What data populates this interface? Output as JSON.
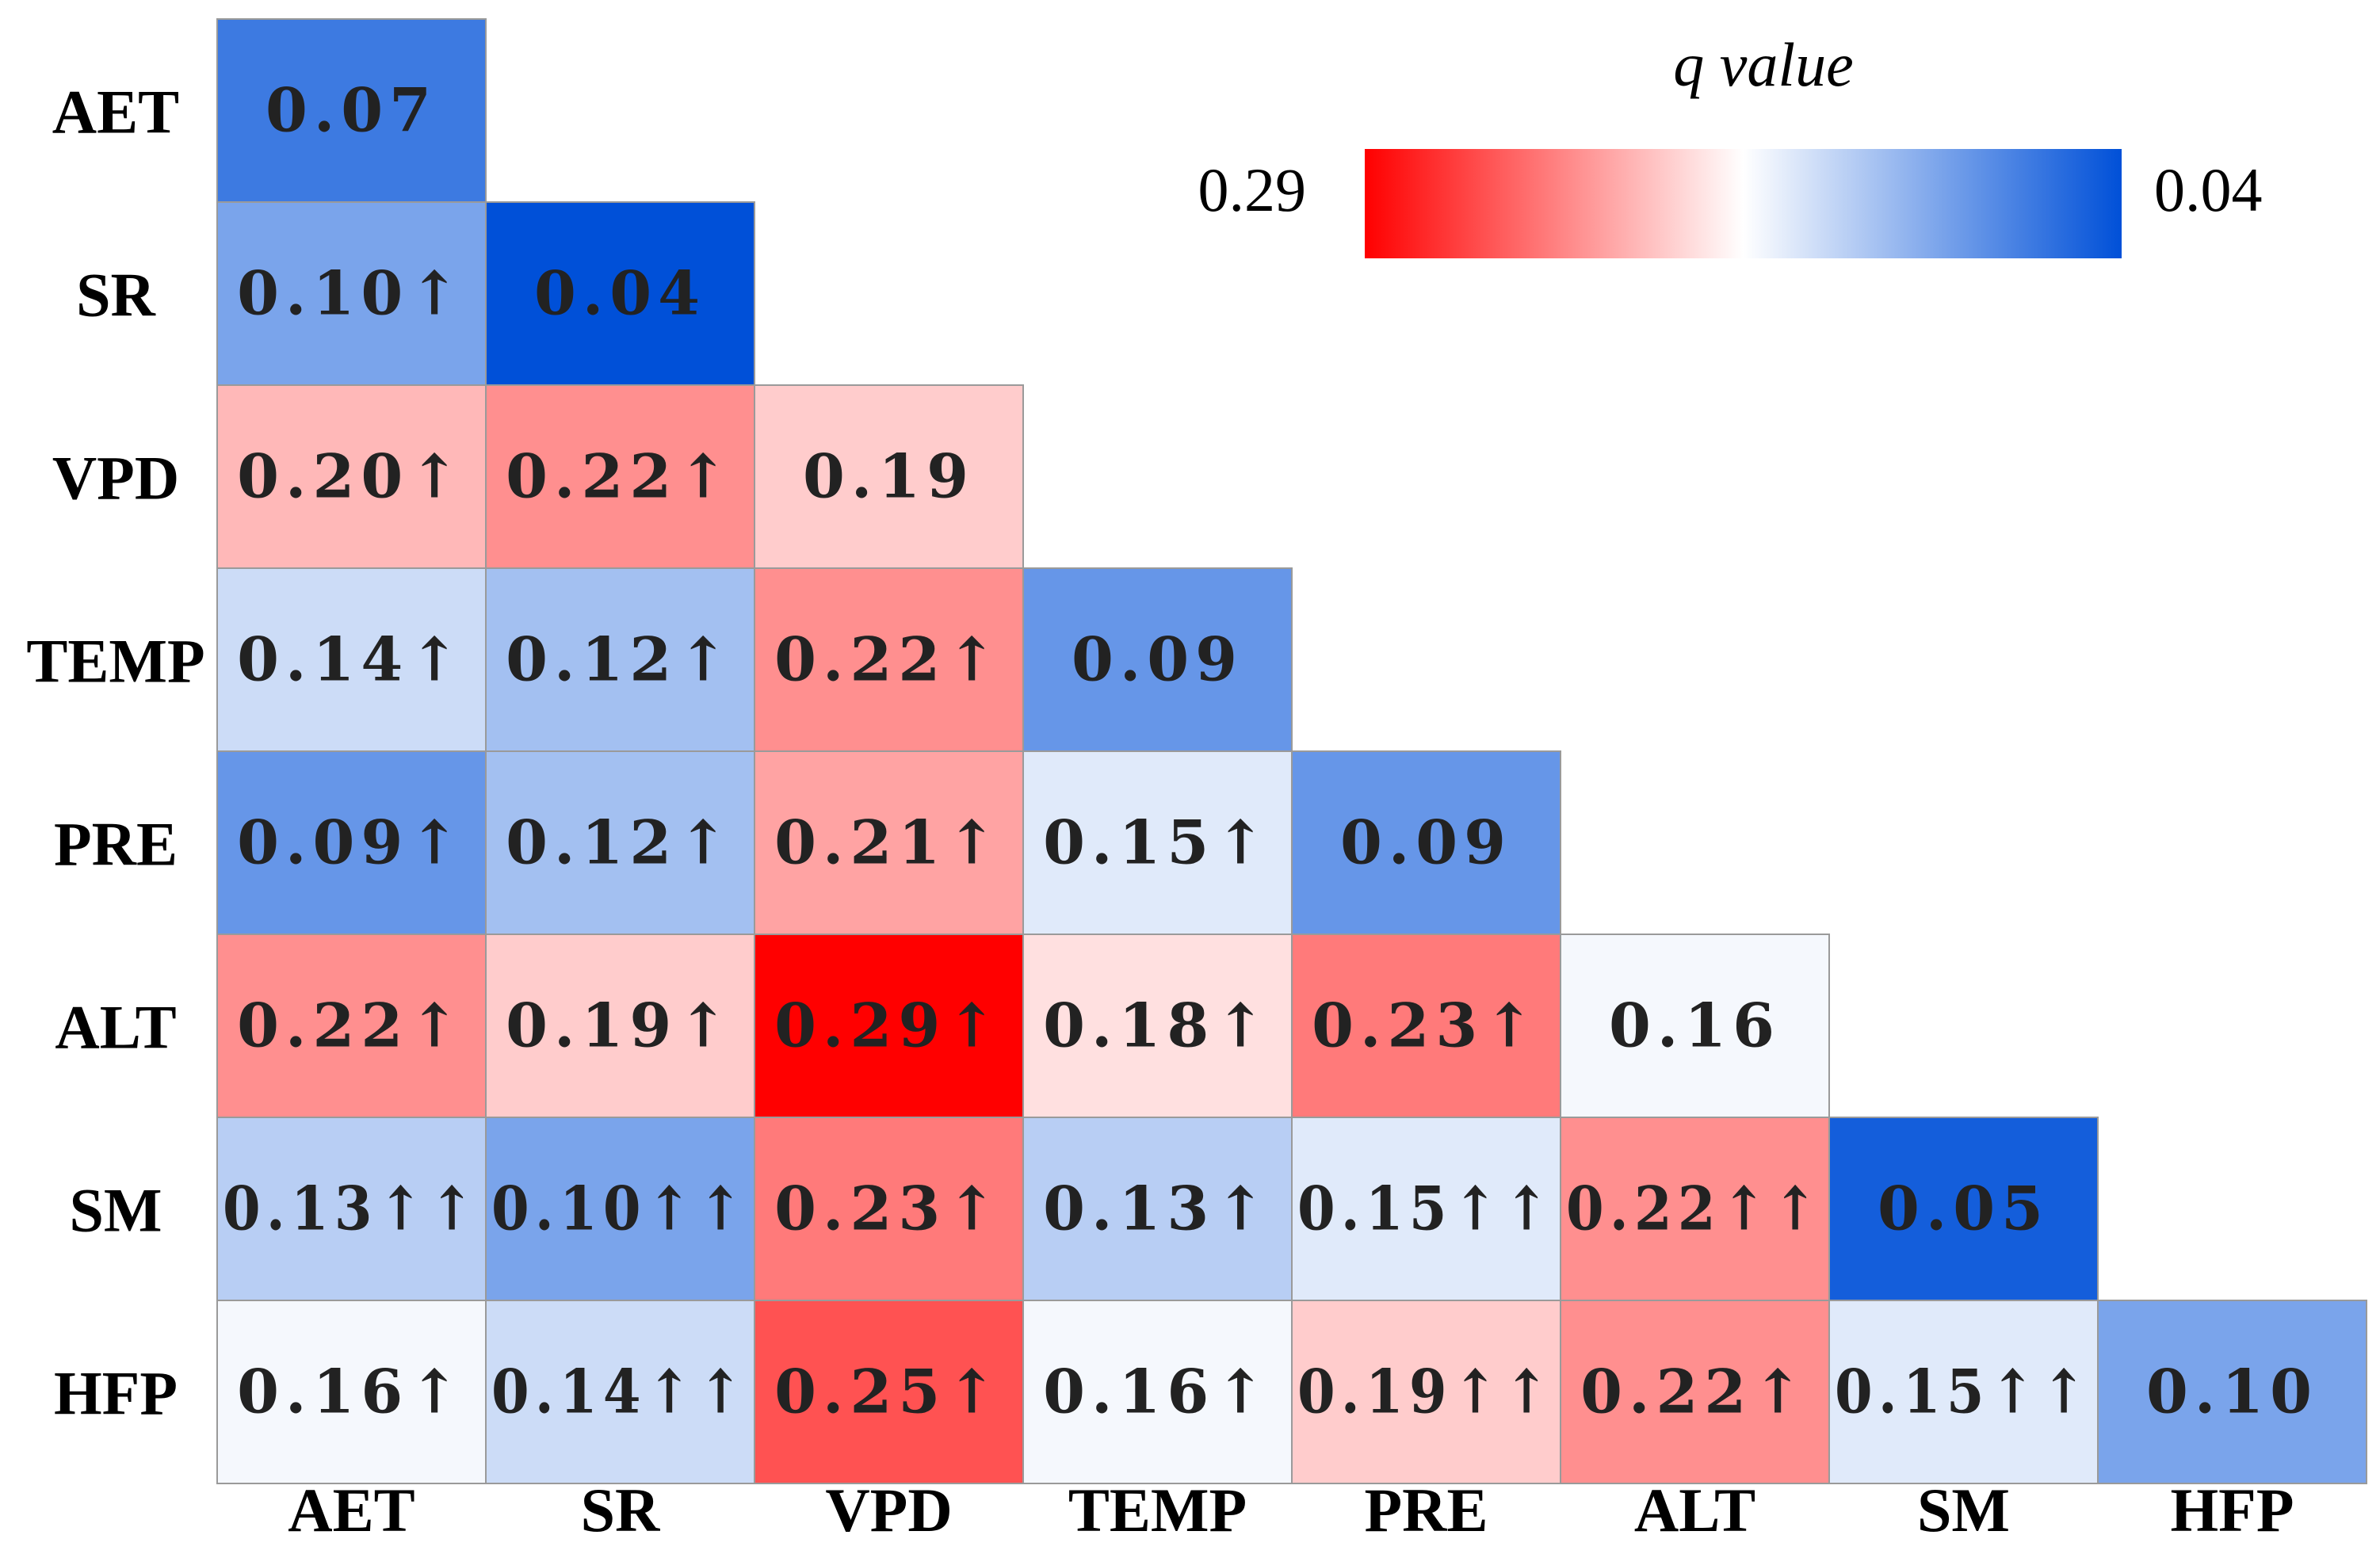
{
  "chart_data": {
    "type": "heatmap",
    "title": "",
    "xlabel": "",
    "ylabel": "",
    "factors": [
      "AET",
      "SR",
      "VPD",
      "TEMP",
      "PRE",
      "ALT",
      "SM",
      "HFP"
    ],
    "legend": {
      "title": "q value",
      "max_label": "0.29",
      "min_label": "0.04",
      "max": 0.29,
      "min": 0.04,
      "high_color": "#ff0000",
      "mid_color": "#ffffff",
      "low_color": "#0050d8",
      "placement": "top-right"
    },
    "cells": [
      {
        "row": "AET",
        "col": "AET",
        "value": 0.07,
        "label": "0.07"
      },
      {
        "row": "SR",
        "col": "AET",
        "value": 0.1,
        "label": "0.10↑"
      },
      {
        "row": "SR",
        "col": "SR",
        "value": 0.04,
        "label": "0.04"
      },
      {
        "row": "VPD",
        "col": "AET",
        "value": 0.2,
        "label": "0.20↑"
      },
      {
        "row": "VPD",
        "col": "SR",
        "value": 0.22,
        "label": "0.22↑"
      },
      {
        "row": "VPD",
        "col": "VPD",
        "value": 0.19,
        "label": "0.19"
      },
      {
        "row": "TEMP",
        "col": "AET",
        "value": 0.14,
        "label": "0.14↑"
      },
      {
        "row": "TEMP",
        "col": "SR",
        "value": 0.12,
        "label": "0.12↑"
      },
      {
        "row": "TEMP",
        "col": "VPD",
        "value": 0.22,
        "label": "0.22↑"
      },
      {
        "row": "TEMP",
        "col": "TEMP",
        "value": 0.09,
        "label": "0.09"
      },
      {
        "row": "PRE",
        "col": "AET",
        "value": 0.09,
        "label": "0.09↑"
      },
      {
        "row": "PRE",
        "col": "SR",
        "value": 0.12,
        "label": "0.12↑"
      },
      {
        "row": "PRE",
        "col": "VPD",
        "value": 0.21,
        "label": "0.21↑"
      },
      {
        "row": "PRE",
        "col": "TEMP",
        "value": 0.15,
        "label": "0.15↑"
      },
      {
        "row": "PRE",
        "col": "PRE",
        "value": 0.09,
        "label": "0.09"
      },
      {
        "row": "ALT",
        "col": "AET",
        "value": 0.22,
        "label": "0.22↑"
      },
      {
        "row": "ALT",
        "col": "SR",
        "value": 0.19,
        "label": "0.19↑"
      },
      {
        "row": "ALT",
        "col": "VPD",
        "value": 0.29,
        "label": "0.29↑"
      },
      {
        "row": "ALT",
        "col": "TEMP",
        "value": 0.18,
        "label": "0.18↑"
      },
      {
        "row": "ALT",
        "col": "PRE",
        "value": 0.23,
        "label": "0.23↑"
      },
      {
        "row": "ALT",
        "col": "ALT",
        "value": 0.16,
        "label": "0.16"
      },
      {
        "row": "SM",
        "col": "AET",
        "value": 0.13,
        "label": "0.13↑↑"
      },
      {
        "row": "SM",
        "col": "SR",
        "value": 0.1,
        "label": "0.10↑↑"
      },
      {
        "row": "SM",
        "col": "VPD",
        "value": 0.23,
        "label": "0.23↑"
      },
      {
        "row": "SM",
        "col": "TEMP",
        "value": 0.13,
        "label": "0.13↑"
      },
      {
        "row": "SM",
        "col": "PRE",
        "value": 0.15,
        "label": "0.15↑↑"
      },
      {
        "row": "SM",
        "col": "ALT",
        "value": 0.22,
        "label": "0.22↑↑"
      },
      {
        "row": "SM",
        "col": "SM",
        "value": 0.05,
        "label": "0.05"
      },
      {
        "row": "HFP",
        "col": "AET",
        "value": 0.16,
        "label": "0.16↑"
      },
      {
        "row": "HFP",
        "col": "SR",
        "value": 0.14,
        "label": "0.14↑↑"
      },
      {
        "row": "HFP",
        "col": "VPD",
        "value": 0.25,
        "label": "0.25↑"
      },
      {
        "row": "HFP",
        "col": "TEMP",
        "value": 0.16,
        "label": "0.16↑"
      },
      {
        "row": "HFP",
        "col": "PRE",
        "value": 0.19,
        "label": "0.19↑↑"
      },
      {
        "row": "HFP",
        "col": "ALT",
        "value": 0.22,
        "label": "0.22↑"
      },
      {
        "row": "HFP",
        "col": "SM",
        "value": 0.15,
        "label": "0.15↑↑"
      },
      {
        "row": "HFP",
        "col": "HFP",
        "value": 0.1,
        "label": "0.10"
      }
    ]
  }
}
